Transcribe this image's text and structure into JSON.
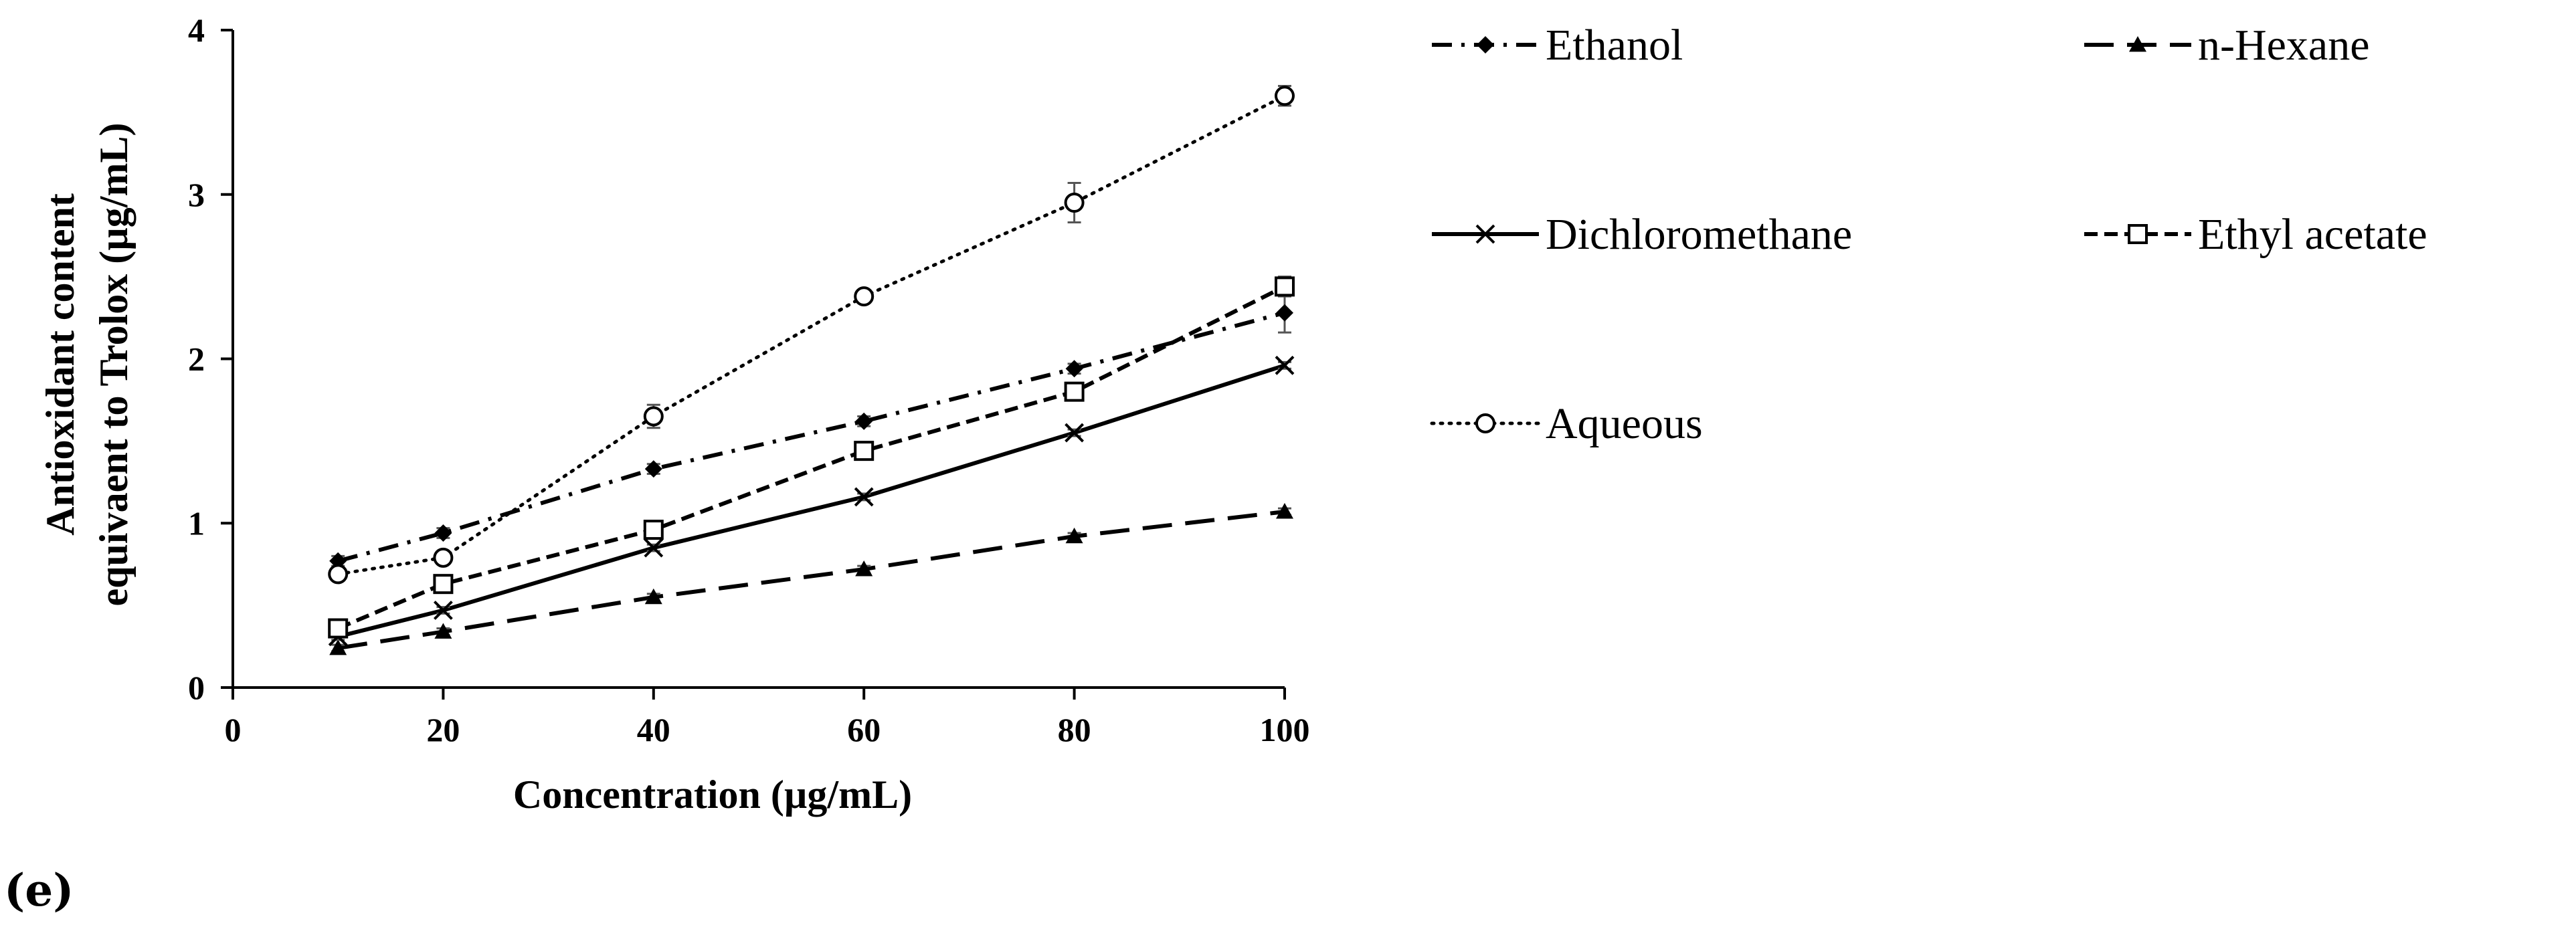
{
  "chart_data": {
    "type": "line",
    "title": "",
    "xlabel": "Concentration (µg/mL)",
    "ylabel_lines": [
      "Antioxidant content",
      "equivaent to Trolox (µg/mL)"
    ],
    "xlim": [
      0,
      100
    ],
    "ylim": [
      0,
      4
    ],
    "xticks": [
      0,
      20,
      40,
      60,
      80,
      100
    ],
    "yticks": [
      0,
      1,
      2,
      3,
      4
    ],
    "grid": false,
    "legend_position": "right",
    "series": [
      {
        "name": "Ethanol",
        "marker": "diamond",
        "dash": "dashdot",
        "x": [
          10,
          20,
          40,
          60,
          80,
          100
        ],
        "y": [
          0.77,
          0.94,
          1.33,
          1.62,
          1.94,
          2.28
        ],
        "err": [
          0.03,
          0.03,
          0.03,
          0.03,
          0.03,
          0.12
        ]
      },
      {
        "name": "n-Hexane",
        "marker": "triangle",
        "dash": "longdash",
        "x": [
          10,
          20,
          40,
          60,
          80,
          100
        ],
        "y": [
          0.24,
          0.34,
          0.55,
          0.72,
          0.92,
          1.07
        ],
        "err": [
          0.02,
          0.02,
          0.02,
          0.02,
          0.02,
          0.02
        ]
      },
      {
        "name": "Dichloromethane",
        "marker": "x",
        "dash": "solid",
        "x": [
          10,
          20,
          40,
          60,
          80,
          100
        ],
        "y": [
          0.31,
          0.47,
          0.85,
          1.16,
          1.55,
          1.96
        ],
        "err": [
          0.02,
          0.02,
          0.02,
          0.02,
          0.02,
          0.02
        ]
      },
      {
        "name": "Ethyl acetate",
        "marker": "square",
        "dash": "shortdash",
        "x": [
          10,
          20,
          40,
          60,
          80,
          100
        ],
        "y": [
          0.36,
          0.63,
          0.96,
          1.44,
          1.8,
          2.44
        ],
        "err": [
          0.02,
          0.03,
          0.03,
          0.03,
          0.03,
          0.06
        ]
      },
      {
        "name": "Aqueous",
        "marker": "circle",
        "dash": "dotted",
        "x": [
          10,
          20,
          40,
          60,
          80,
          100
        ],
        "y": [
          0.69,
          0.79,
          1.65,
          2.38,
          2.95,
          3.6
        ],
        "err": [
          0.03,
          0.03,
          0.07,
          0.03,
          0.12,
          0.06
        ]
      }
    ]
  },
  "panel_label": "(e)"
}
